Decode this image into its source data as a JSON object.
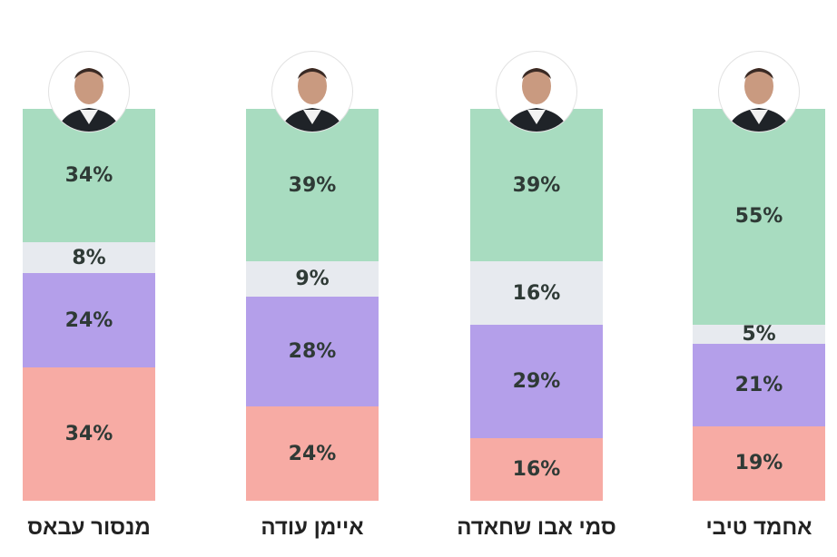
{
  "chart_data": {
    "type": "bar",
    "stacked": true,
    "categories": [
      "מנסור עבאס",
      "איימן עודה",
      "סמי אבו שחאדה",
      "אחמד טיבי"
    ],
    "series": [
      {
        "values": [
          34,
          39,
          39,
          55
        ],
        "color": "#a8dcc0"
      },
      {
        "values": [
          8,
          9,
          16,
          5
        ],
        "color": "#e7eaef"
      },
      {
        "values": [
          24,
          28,
          29,
          21
        ],
        "color": "#b49fea"
      },
      {
        "values": [
          34,
          24,
          16,
          19
        ],
        "color": "#f7aba4"
      }
    ],
    "value_suffix": "%",
    "ylim": [
      0,
      100
    ],
    "grid": false
  }
}
